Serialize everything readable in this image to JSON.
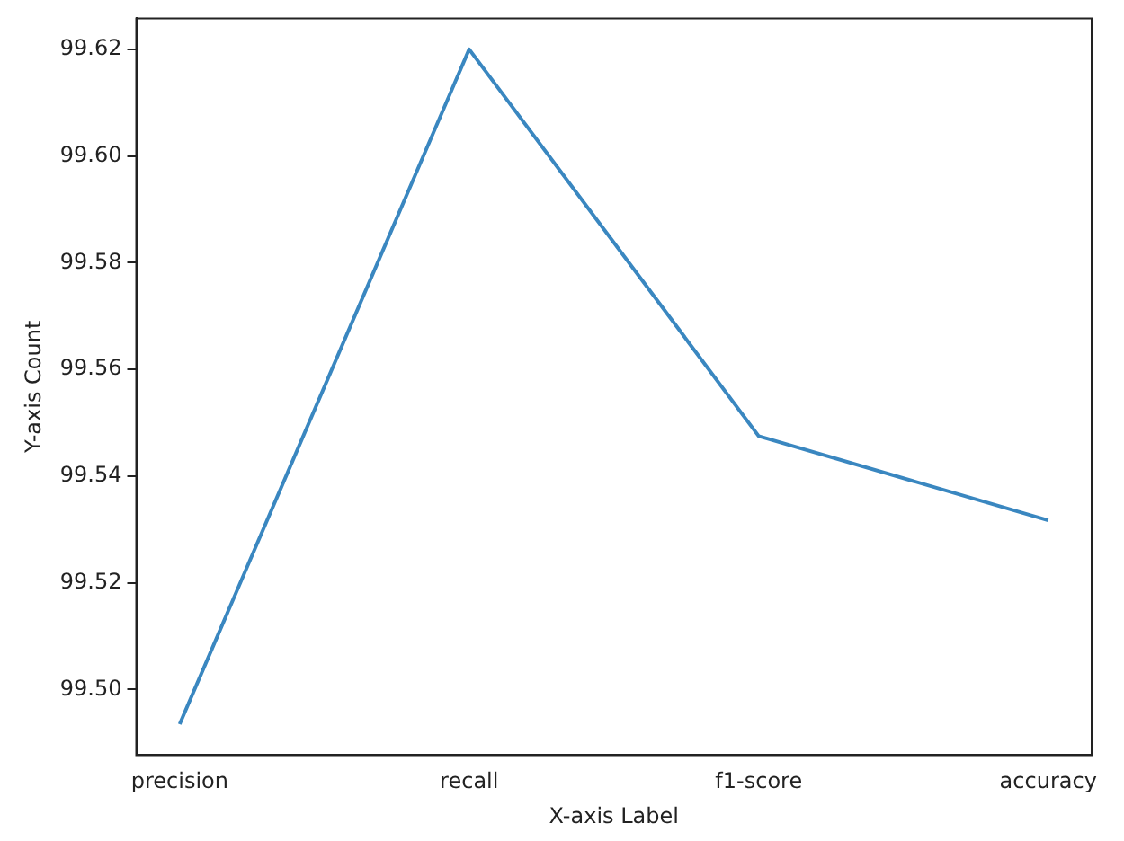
{
  "chart_data": {
    "type": "line",
    "xlabel": "X-axis Label",
    "ylabel": "Y-axis Count",
    "categories": [
      "precision",
      "recall",
      "f1-score",
      "accuracy"
    ],
    "series": [
      {
        "color": "#3a87c0",
        "values": [
          99.4935,
          99.62,
          99.5475,
          99.5317
        ]
      }
    ],
    "ylim": [
      99.4877,
      99.6258
    ],
    "yticks": [
      {
        "value": 99.5,
        "label": "99.50"
      },
      99.52,
      99.54,
      99.56,
      99.58,
      {
        "value": 99.6,
        "label": "99.60"
      },
      99.62
    ],
    "grid": false,
    "legend": false,
    "marker": "none",
    "line_style": "solid"
  }
}
